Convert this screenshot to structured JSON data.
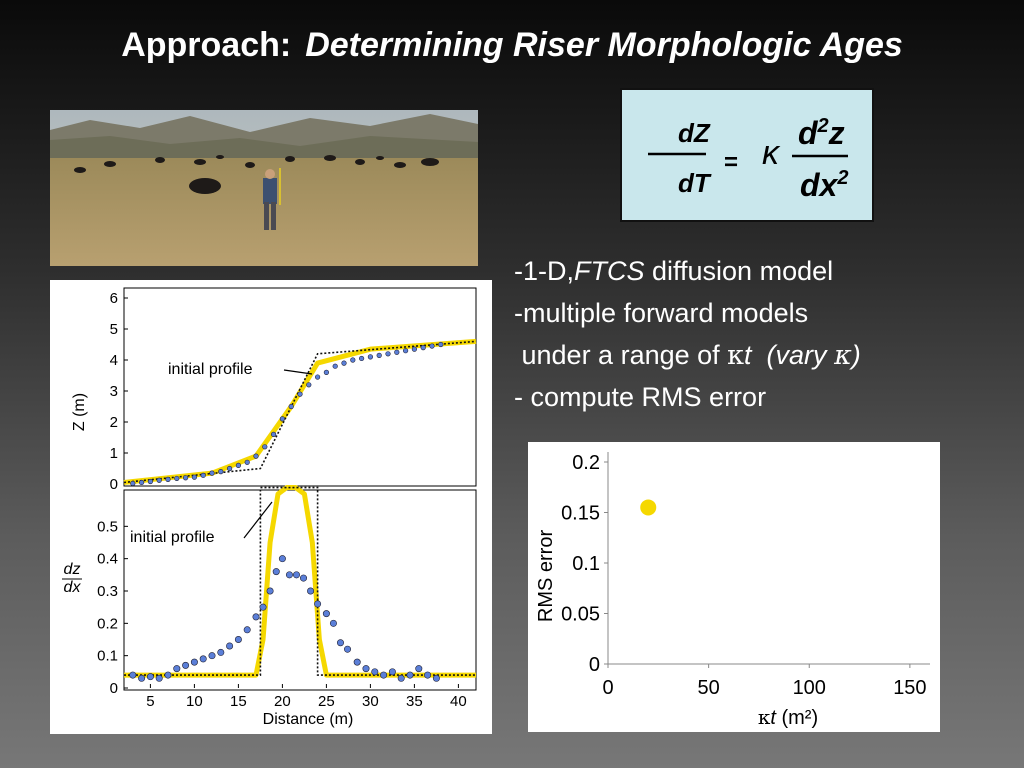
{
  "title": {
    "prefix": "Approach:",
    "main": "Determining Riser Morphologic Ages"
  },
  "equation": {
    "lhs_num": "dZ",
    "lhs_den": "dT",
    "equals": "=",
    "kappa": "κ",
    "rhs_num_base": "d",
    "rhs_num_exp": "2",
    "rhs_num_var": "z",
    "rhs_den_base": "dx",
    "rhs_den_exp": "2"
  },
  "bullets": {
    "line1_a": "-1-D,",
    "line1_b": "FTCS",
    "line1_c": " diffusion model",
    "line2": "-multiple forward models",
    "line3_a": " under a range of ",
    "line3_b": "κ",
    "line3_c": "t",
    "line3_d": "  (vary ",
    "line3_e": "κ",
    "line3_f": ")",
    "line4": "- compute RMS error"
  },
  "chart_data": [
    {
      "type": "line",
      "ylabel": "Z (m)",
      "yticks": [
        "0",
        "1",
        "2",
        "3",
        "4",
        "5",
        "6"
      ],
      "ylim": [
        0,
        6
      ],
      "xlim": [
        2,
        42
      ],
      "annotation": "initial profile",
      "initial_profile": {
        "x": [
          2,
          17.5,
          24,
          42
        ],
        "y": [
          0.05,
          0.5,
          4.2,
          4.6
        ]
      },
      "model_profile": {
        "x": [
          2,
          12,
          17,
          21,
          24,
          30,
          42
        ],
        "y": [
          0.05,
          0.35,
          0.9,
          2.5,
          3.9,
          4.35,
          4.6
        ]
      },
      "observed": {
        "x": [
          3,
          4,
          5,
          6,
          7,
          8,
          9,
          10,
          11,
          12,
          13,
          14,
          15,
          16,
          17,
          18,
          19,
          20,
          21,
          22,
          23,
          24,
          25,
          26,
          27,
          28,
          29,
          30,
          31,
          32,
          33,
          34,
          35,
          36,
          37,
          38
        ],
        "y": [
          0.02,
          0.05,
          0.08,
          0.12,
          0.15,
          0.18,
          0.2,
          0.22,
          0.28,
          0.35,
          0.4,
          0.5,
          0.6,
          0.7,
          0.9,
          1.2,
          1.6,
          2.1,
          2.5,
          2.9,
          3.2,
          3.45,
          3.6,
          3.8,
          3.9,
          4.0,
          4.05,
          4.1,
          4.15,
          4.2,
          4.25,
          4.3,
          4.35,
          4.4,
          4.45,
          4.5
        ]
      }
    },
    {
      "type": "line",
      "ylabel_num": "dz",
      "ylabel_den": "dx",
      "yticks": [
        "0",
        "0.1",
        "0.2",
        "0.3",
        "0.4",
        "0.5"
      ],
      "ylim": [
        0,
        0.6
      ],
      "xlabel": "Distance (m)",
      "xticks": [
        "5",
        "10",
        "15",
        "20",
        "25",
        "30",
        "35",
        "40"
      ],
      "xlim": [
        2,
        42
      ],
      "annotation": "initial profile",
      "initial_profile": {
        "x": [
          2,
          17.5,
          17.5,
          24,
          24,
          42
        ],
        "y": [
          0.04,
          0.04,
          0.62,
          0.62,
          0.04,
          0.04
        ]
      },
      "model_profile": {
        "x": [
          2,
          17,
          17.8,
          18.6,
          19.5,
          20.5,
          21.5,
          22.5,
          23.4,
          24.2,
          25,
          42
        ],
        "y": [
          0.04,
          0.04,
          0.15,
          0.45,
          0.6,
          0.62,
          0.62,
          0.6,
          0.45,
          0.15,
          0.04,
          0.04
        ]
      },
      "observed": {
        "x": [
          3,
          4,
          5,
          6,
          7,
          8,
          9,
          10,
          11,
          12,
          13,
          14,
          15,
          16,
          17,
          17.8,
          18.6,
          19.3,
          20,
          20.8,
          21.6,
          22.4,
          23.2,
          24,
          25,
          25.8,
          26.6,
          27.4,
          28.5,
          29.5,
          30.5,
          31.5,
          32.5,
          33.5,
          34.5,
          35.5,
          36.5,
          37.5
        ],
        "y": [
          0.04,
          0.03,
          0.035,
          0.03,
          0.04,
          0.06,
          0.07,
          0.08,
          0.09,
          0.1,
          0.11,
          0.13,
          0.15,
          0.18,
          0.22,
          0.25,
          0.3,
          0.36,
          0.4,
          0.35,
          0.35,
          0.34,
          0.3,
          0.26,
          0.23,
          0.2,
          0.14,
          0.12,
          0.08,
          0.06,
          0.05,
          0.04,
          0.05,
          0.03,
          0.04,
          0.06,
          0.04,
          0.03
        ]
      }
    },
    {
      "type": "scatter",
      "ylabel": "RMS error",
      "xlabel_pre": "κ",
      "xlabel_var": "t",
      "xlabel_post": " (m²)",
      "yticks": [
        "0",
        "0.05",
        "0.1",
        "0.15",
        "0.2"
      ],
      "xticks": [
        "0",
        "50",
        "100",
        "150"
      ],
      "xlim": [
        0,
        160
      ],
      "ylim": [
        0,
        0.2
      ],
      "points": [
        {
          "x": 20,
          "y": 0.155,
          "color": "#f5d800"
        }
      ]
    }
  ],
  "colors": {
    "yellow": "#f5d800",
    "blue_dot": "#5b7fd8",
    "eq_box": "#c9e7ec"
  }
}
